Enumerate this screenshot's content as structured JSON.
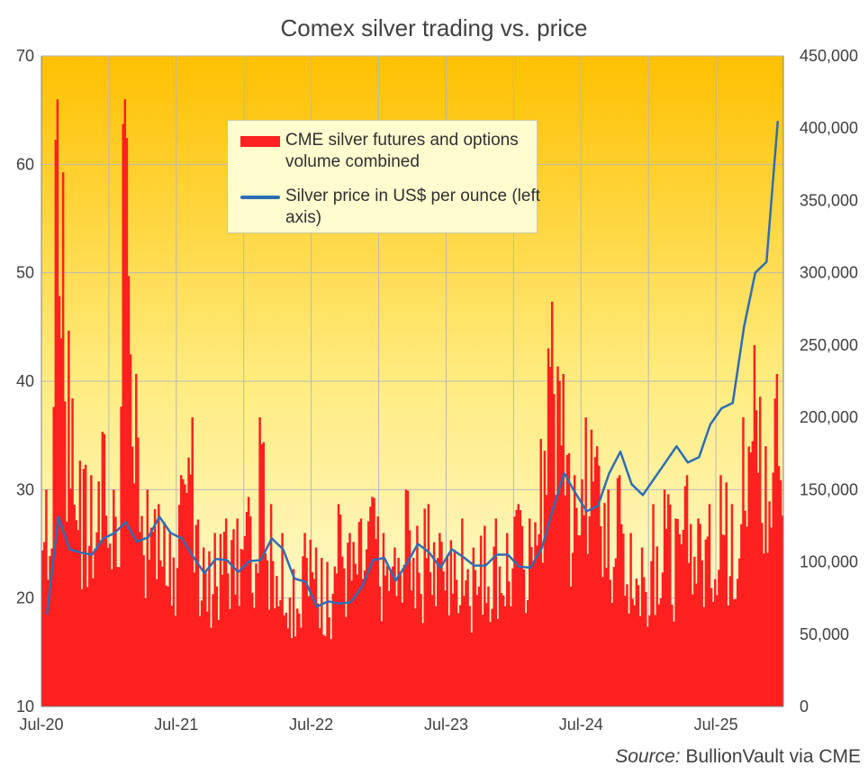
{
  "chart_data": {
    "type": "bar+line",
    "title": "Comex silver trading vs. price",
    "source_label": "Source:",
    "source_text": "BullionVault via CME",
    "left_axis": {
      "ylim": [
        10,
        70
      ],
      "ticks": [
        "10",
        "20",
        "30",
        "40",
        "50",
        "60",
        "70"
      ]
    },
    "right_axis": {
      "ylim": [
        0,
        450000
      ],
      "ticks": [
        "0",
        "50,000",
        "100,000",
        "150,000",
        "200,000",
        "250,000",
        "300,000",
        "350,000",
        "400,000",
        "450,000"
      ]
    },
    "x_ticks": [
      "Jul-20",
      "Jul-21",
      "Jul-22",
      "Jul-23",
      "Jul-24",
      "Jul-25"
    ],
    "x_range_months": [
      "2020-07",
      "2025-12"
    ],
    "grid": true,
    "legend_position": "top-center",
    "series": [
      {
        "name": "CME silver futures and options volume combined",
        "kind": "bar",
        "axis": "right",
        "color": "#ff2020",
        "x": [
          "2020-07",
          "2020-08",
          "2020-09",
          "2020-10",
          "2020-11",
          "2020-12",
          "2021-01",
          "2021-02",
          "2021-03",
          "2021-04",
          "2021-05",
          "2021-06",
          "2021-07",
          "2021-08",
          "2021-09",
          "2021-10",
          "2021-11",
          "2021-12",
          "2022-01",
          "2022-02",
          "2022-03",
          "2022-04",
          "2022-05",
          "2022-06",
          "2022-07",
          "2022-08",
          "2022-09",
          "2022-10",
          "2022-11",
          "2022-12",
          "2023-01",
          "2023-02",
          "2023-03",
          "2023-04",
          "2023-05",
          "2023-06",
          "2023-07",
          "2023-08",
          "2023-09",
          "2023-10",
          "2023-11",
          "2023-12",
          "2024-01",
          "2024-02",
          "2024-03",
          "2024-04",
          "2024-05",
          "2024-06",
          "2024-07",
          "2024-08",
          "2024-09",
          "2024-10",
          "2024-11",
          "2024-12",
          "2025-01",
          "2025-02",
          "2025-03",
          "2025-04",
          "2025-05",
          "2025-06",
          "2025-07",
          "2025-08",
          "2025-09",
          "2025-10",
          "2025-11",
          "2025-12"
        ],
        "values": [
          150000,
          420000,
          260000,
          170000,
          160000,
          190000,
          150000,
          420000,
          230000,
          150000,
          140000,
          120000,
          160000,
          200000,
          110000,
          120000,
          130000,
          130000,
          145000,
          200000,
          140000,
          120000,
          95000,
          120000,
          110000,
          100000,
          140000,
          120000,
          130000,
          145000,
          120000,
          110000,
          150000,
          125000,
          140000,
          120000,
          115000,
          130000,
          110000,
          125000,
          130000,
          120000,
          140000,
          130000,
          185000,
          280000,
          230000,
          160000,
          200000,
          180000,
          150000,
          160000,
          120000,
          110000,
          140000,
          150000,
          130000,
          160000,
          130000,
          140000,
          160000,
          140000,
          200000,
          250000,
          180000,
          230000
        ]
      },
      {
        "name": "Silver price in US$ per ounce (left axis)",
        "kind": "line",
        "axis": "left",
        "color": "#2e6db4",
        "x": [
          "2020-07",
          "2020-08",
          "2020-09",
          "2020-10",
          "2020-11",
          "2020-12",
          "2021-01",
          "2021-02",
          "2021-03",
          "2021-04",
          "2021-05",
          "2021-06",
          "2021-07",
          "2021-08",
          "2021-09",
          "2021-10",
          "2021-11",
          "2021-12",
          "2022-01",
          "2022-02",
          "2022-03",
          "2022-04",
          "2022-05",
          "2022-06",
          "2022-07",
          "2022-08",
          "2022-09",
          "2022-10",
          "2022-11",
          "2022-12",
          "2023-01",
          "2023-02",
          "2023-03",
          "2023-04",
          "2023-05",
          "2023-06",
          "2023-07",
          "2023-08",
          "2023-09",
          "2023-10",
          "2023-11",
          "2023-12",
          "2024-01",
          "2024-02",
          "2024-03",
          "2024-04",
          "2024-05",
          "2024-06",
          "2024-07",
          "2024-08",
          "2024-09",
          "2024-10",
          "2024-11",
          "2024-12",
          "2025-01",
          "2025-02",
          "2025-03",
          "2025-04",
          "2025-05",
          "2025-06",
          "2025-07",
          "2025-08",
          "2025-09",
          "2025-10",
          "2025-11",
          "2025-12"
        ],
        "values": [
          18.5,
          27.5,
          24.5,
          24.2,
          24.0,
          25.5,
          26.0,
          27.0,
          25.2,
          25.6,
          27.5,
          26.0,
          25.5,
          23.8,
          22.3,
          23.6,
          23.5,
          22.4,
          23.4,
          23.5,
          25.5,
          24.5,
          21.8,
          21.5,
          19.2,
          19.7,
          19.5,
          19.6,
          21.0,
          23.5,
          23.7,
          21.6,
          23.2,
          25.0,
          24.2,
          22.8,
          24.5,
          23.8,
          23.0,
          23.0,
          24.0,
          24.0,
          22.9,
          22.8,
          24.6,
          28.2,
          31.5,
          29.7,
          28.0,
          28.5,
          31.5,
          33.5,
          30.5,
          29.5,
          31.0,
          32.5,
          34.0,
          32.5,
          33.0,
          36.0,
          37.5,
          38.0,
          45.0,
          50.0,
          51.0,
          64.0
        ]
      }
    ]
  }
}
